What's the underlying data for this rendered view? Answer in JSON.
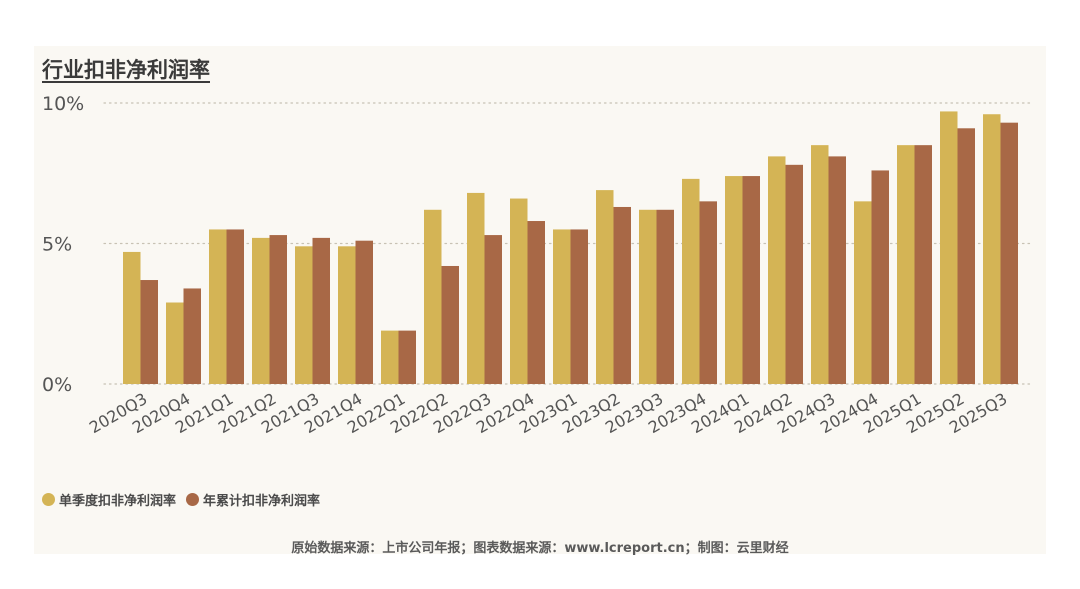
{
  "title": "行业扣非净利润率",
  "legend": {
    "series1": "单季度扣非净利润率",
    "series2": "年累计扣非净利润率"
  },
  "footer": "原始数据来源：上市公司年报；图表数据来源：www.lcreport.cn；制图：云里财经",
  "colors": {
    "series1": "#d4b455",
    "series2": "#a86846",
    "grid": "#c8c2b4",
    "axis_text": "#555555",
    "panel": "#faf8f3"
  },
  "chart_data": {
    "type": "bar",
    "categories": [
      "2020Q3",
      "2020Q4",
      "2021Q1",
      "2021Q2",
      "2021Q3",
      "2021Q4",
      "2022Q1",
      "2022Q2",
      "2022Q3",
      "2022Q4",
      "2023Q1",
      "2023Q2",
      "2023Q3",
      "2023Q4",
      "2024Q1",
      "2024Q2",
      "2024Q3",
      "2024Q4",
      "2025Q1",
      "2025Q2",
      "2025Q3"
    ],
    "series": [
      {
        "name": "单季度扣非净利润率",
        "values": [
          4.7,
          2.9,
          5.5,
          5.2,
          4.9,
          4.9,
          1.9,
          6.2,
          6.8,
          6.6,
          5.5,
          6.9,
          6.2,
          7.3,
          7.4,
          8.1,
          8.5,
          6.5,
          8.5,
          9.7,
          9.6
        ]
      },
      {
        "name": "年累计扣非净利润率",
        "values": [
          3.7,
          3.4,
          5.5,
          5.3,
          5.2,
          5.1,
          1.9,
          4.2,
          5.3,
          5.8,
          5.5,
          6.3,
          6.2,
          6.5,
          7.4,
          7.8,
          8.1,
          7.6,
          8.5,
          9.1,
          9.3
        ]
      }
    ],
    "yticks": [
      "0%",
      "5%",
      "10%"
    ],
    "ytick_values": [
      0,
      5,
      10
    ],
    "ylim": [
      0,
      10
    ],
    "grid": true,
    "legend_position": "bottom-left"
  }
}
